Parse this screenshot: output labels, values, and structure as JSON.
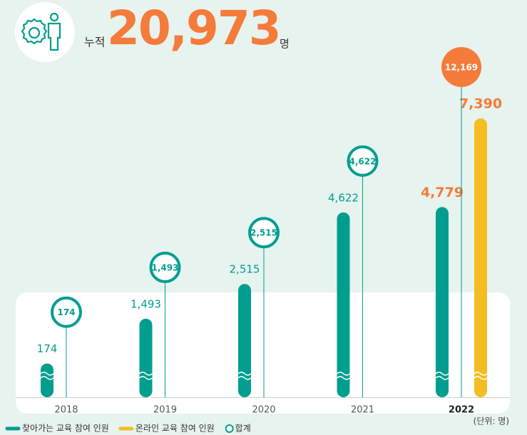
{
  "chart_data": {
    "type": "bar",
    "total": {
      "label": "누적",
      "value": 20973,
      "value_label": "20,973",
      "unit": "명"
    },
    "categories": [
      "2018",
      "2019",
      "2020",
      "2021",
      "2022"
    ],
    "highlight_category": 4,
    "series": [
      {
        "name": "찾아가는 교육 참여 인원",
        "color": "#009e8f",
        "values": [
          174,
          1493,
          2515,
          4622,
          4779
        ],
        "value_labels": [
          "174",
          "1,493",
          "2,515",
          "4,622",
          "4,779"
        ]
      },
      {
        "name": "온라인 교육 참여 인원",
        "color": "#f4bd21",
        "values": [
          null,
          null,
          null,
          null,
          7390
        ],
        "value_labels": [
          null,
          null,
          null,
          null,
          "7,390"
        ]
      }
    ],
    "totals": {
      "name": "합계",
      "color": "#009e8f",
      "highlight_color": "#f47b3a",
      "values": [
        174,
        1493,
        2515,
        4622,
        12169
      ],
      "value_labels": [
        "174",
        "1,493",
        "2,515",
        "4,622",
        "12,169"
      ]
    },
    "unit_note": "(단위: 명)"
  }
}
